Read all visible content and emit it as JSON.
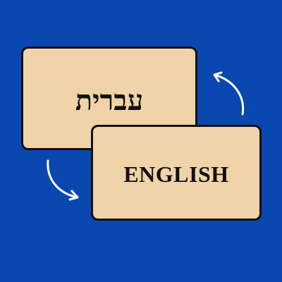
{
  "background_color": "#0a47b0",
  "card_color": "#f1d3a9",
  "border_color": "#111111",
  "arrow_color": "#ffffff",
  "cards": {
    "hebrew": {
      "label": "עברית"
    },
    "english": {
      "label": "ENGLISH"
    }
  },
  "icons": [
    "curved-arrow-icon-up",
    "curved-arrow-icon-down"
  ]
}
